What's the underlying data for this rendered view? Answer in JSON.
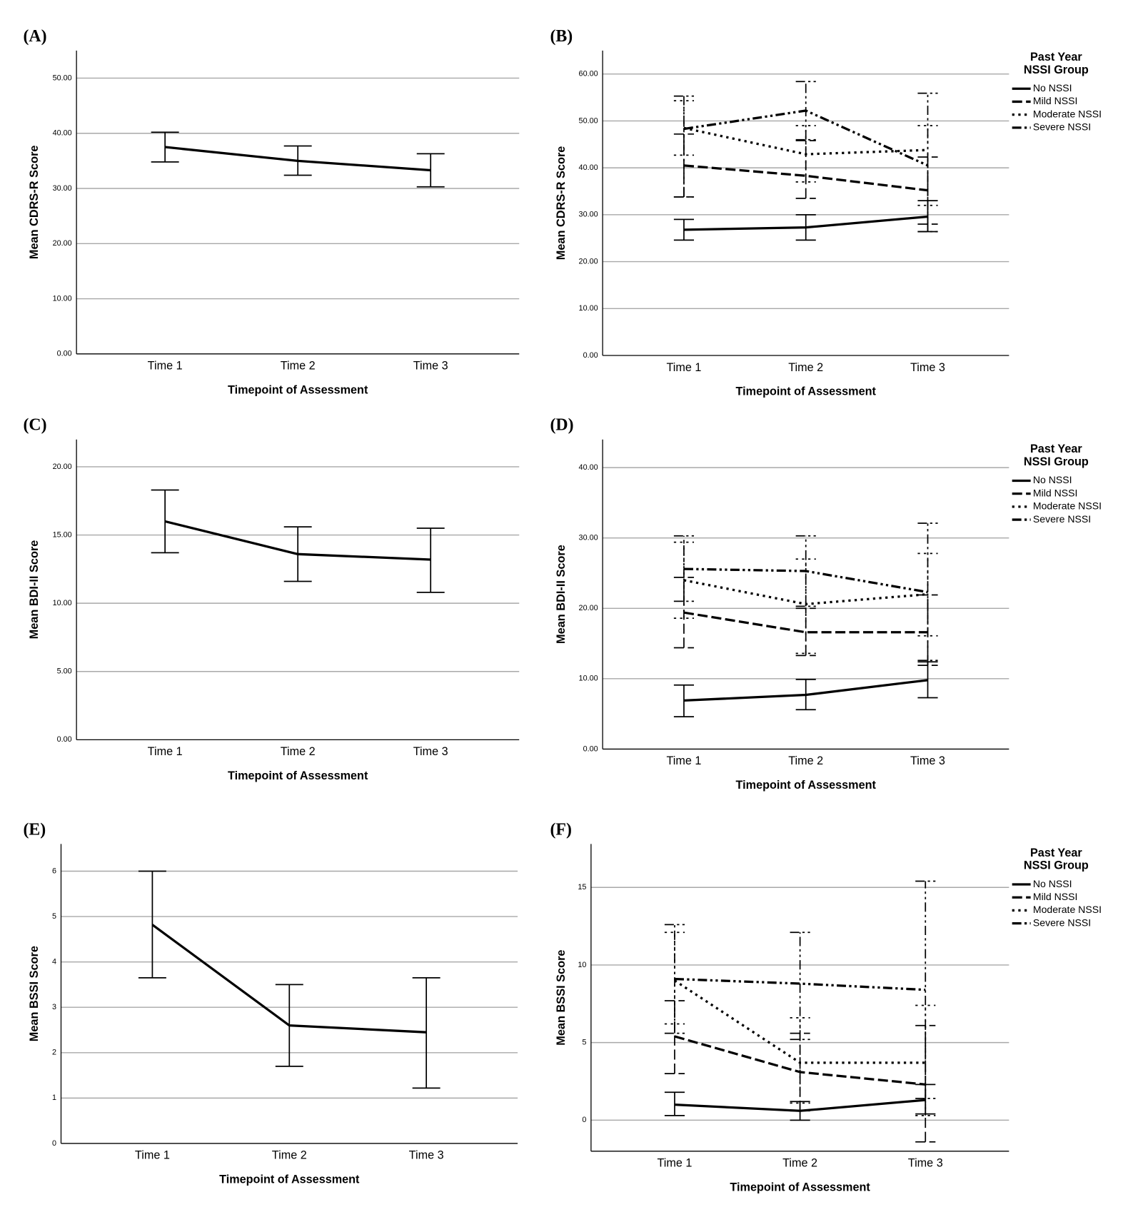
{
  "chart_data": [
    {
      "type": "line",
      "panel": "(A)",
      "ylabel": "Mean CDRS-R Score",
      "xlabel": "Timepoint of Assessment",
      "categories": [
        "Time 1",
        "Time 2",
        "Time 3"
      ],
      "ylim": [
        0,
        55
      ],
      "yticks": [
        {
          "value": 0,
          "label": "0.00"
        },
        {
          "value": 10,
          "label": "10.00"
        },
        {
          "value": 20,
          "label": "20.00"
        },
        {
          "value": 30,
          "label": "30.00"
        },
        {
          "value": 40,
          "label": "40.00"
        },
        {
          "value": 50,
          "label": "50.00"
        }
      ],
      "grid": true,
      "series": [
        {
          "color": "#000000",
          "values": [
            37.5,
            35.0,
            33.3
          ],
          "ci_low": [
            34.8,
            32.4,
            30.3
          ],
          "ci_high": [
            40.2,
            37.7,
            36.3
          ]
        }
      ]
    },
    {
      "type": "line",
      "panel": "(B)",
      "ylabel": "Mean CDRS-R Score",
      "xlabel": "Timepoint of Assessment",
      "categories": [
        "Time 1",
        "Time 2",
        "Time 3"
      ],
      "ylim": [
        0,
        65
      ],
      "yticks": [
        {
          "value": 0,
          "label": "0.00"
        },
        {
          "value": 10,
          "label": "10.00"
        },
        {
          "value": 20,
          "label": "20.00"
        },
        {
          "value": 30,
          "label": "30.00"
        },
        {
          "value": 40,
          "label": "40.00"
        },
        {
          "value": 50,
          "label": "50.00"
        },
        {
          "value": 60,
          "label": "60.00"
        }
      ],
      "grid": true,
      "legend_title": [
        "Past Year",
        "NSSI Group"
      ],
      "legend": "right",
      "series": [
        {
          "name": "No NSSI",
          "color": "#000000",
          "values": [
            26.8,
            27.3,
            29.6
          ],
          "ci_low": [
            24.6,
            24.6,
            26.4
          ],
          "ci_high": [
            29.0,
            30.0,
            33.0
          ]
        },
        {
          "name": "Mild NSSI",
          "color": "#000000",
          "values": [
            40.5,
            38.3,
            35.2
          ],
          "ci_low": [
            33.8,
            33.5,
            28.0
          ],
          "ci_high": [
            47.2,
            45.8,
            42.3
          ]
        },
        {
          "name": "Moderate NSSI",
          "color": "#000000",
          "values": [
            48.5,
            42.9,
            43.8
          ],
          "ci_low": [
            42.7,
            37.0,
            32.0
          ],
          "ci_high": [
            54.3,
            49.0,
            49.0
          ]
        },
        {
          "name": "Severe NSSI",
          "color": "#000000",
          "values": [
            48.3,
            52.2,
            40.5
          ],
          "ci_low": [
            33.8,
            46.0,
            26.4
          ],
          "ci_high": [
            55.3,
            58.4,
            55.9
          ]
        }
      ]
    },
    {
      "type": "line",
      "panel": "(C)",
      "ylabel": "Mean BDI-II Score",
      "xlabel": "Timepoint of Assessment",
      "categories": [
        "Time 1",
        "Time 2",
        "Time 3"
      ],
      "ylim": [
        0,
        22
      ],
      "yticks": [
        {
          "value": 0,
          "label": "0.00"
        },
        {
          "value": 5,
          "label": "5.00"
        },
        {
          "value": 10,
          "label": "10.00"
        },
        {
          "value": 15,
          "label": "15.00"
        },
        {
          "value": 20,
          "label": "20.00"
        }
      ],
      "grid": true,
      "series": [
        {
          "color": "#000000",
          "values": [
            16.0,
            13.6,
            13.2
          ],
          "ci_low": [
            13.7,
            11.6,
            10.8
          ],
          "ci_high": [
            18.3,
            15.6,
            15.5
          ]
        }
      ]
    },
    {
      "type": "line",
      "panel": "(D)",
      "ylabel": "Mean BDI-II Score",
      "xlabel": "Timepoint of Assessment",
      "categories": [
        "Time 1",
        "Time 2",
        "Time 3"
      ],
      "ylim": [
        0,
        44
      ],
      "yticks": [
        {
          "value": 0,
          "label": "0.00"
        },
        {
          "value": 10,
          "label": "10.00"
        },
        {
          "value": 20,
          "label": "20.00"
        },
        {
          "value": 30,
          "label": "30.00"
        },
        {
          "value": 40,
          "label": "40.00"
        }
      ],
      "grid": true,
      "legend_title": [
        "Past Year",
        "NSSI Group"
      ],
      "legend": "right",
      "series": [
        {
          "name": "No NSSI",
          "color": "#000000",
          "values": [
            6.9,
            7.7,
            9.8
          ],
          "ci_low": [
            4.6,
            5.6,
            7.3
          ],
          "ci_high": [
            9.1,
            9.9,
            12.4
          ]
        },
        {
          "name": "Mild NSSI",
          "color": "#000000",
          "values": [
            19.4,
            16.6,
            16.6
          ],
          "ci_low": [
            14.4,
            13.3,
            11.9
          ],
          "ci_high": [
            24.4,
            20.0,
            21.9
          ]
        },
        {
          "name": "Moderate NSSI",
          "color": "#000000",
          "values": [
            24.0,
            20.6,
            22.0
          ],
          "ci_low": [
            18.6,
            13.6,
            16.1
          ],
          "ci_high": [
            29.4,
            27.0,
            27.8
          ]
        },
        {
          "name": "Severe NSSI",
          "color": "#000000",
          "values": [
            25.6,
            25.3,
            22.3
          ],
          "ci_low": [
            21.0,
            20.3,
            12.6
          ],
          "ci_high": [
            30.3,
            30.3,
            32.1
          ]
        }
      ]
    },
    {
      "type": "line",
      "panel": "(E)",
      "ylabel": "Mean BSSI Score",
      "xlabel": "Timepoint of Assessment",
      "categories": [
        "Time 1",
        "Time 2",
        "Time 3"
      ],
      "ylim": [
        0,
        6.6
      ],
      "yticks": [
        0,
        1,
        2,
        3,
        4,
        5,
        6
      ],
      "grid": true,
      "series": [
        {
          "color": "#000000",
          "values": [
            4.82,
            2.6,
            2.45
          ],
          "ci_low": [
            3.65,
            1.7,
            1.22
          ],
          "ci_high": [
            6.0,
            3.5,
            3.65
          ]
        }
      ]
    },
    {
      "type": "line",
      "panel": "(F)",
      "ylabel": "Mean BSSI Score",
      "xlabel": "Timepoint of Assessment",
      "categories": [
        "Time 1",
        "Time 2",
        "Time 3"
      ],
      "ylim": [
        -2,
        17.8
      ],
      "yticks": [
        0,
        5,
        10,
        15
      ],
      "grid": true,
      "legend_title": [
        "Past Year",
        "NSSI Group"
      ],
      "legend": "right",
      "series": [
        {
          "name": "No NSSI",
          "color": "#000000",
          "values": [
            1.0,
            0.6,
            1.3
          ],
          "ci_low": [
            0.3,
            0.0,
            0.4
          ],
          "ci_high": [
            1.8,
            1.2,
            2.3
          ]
        },
        {
          "name": "Mild NSSI",
          "color": "#000000",
          "values": [
            5.4,
            3.1,
            2.3
          ],
          "ci_low": [
            3.0,
            0.6,
            -1.4
          ],
          "ci_high": [
            7.7,
            5.6,
            6.1
          ]
        },
        {
          "name": "Moderate NSSI",
          "color": "#000000",
          "values": [
            9.0,
            3.7,
            3.7
          ],
          "ci_low": [
            6.2,
            1.1,
            0.3
          ],
          "ci_high": [
            12.1,
            6.6,
            7.4
          ]
        },
        {
          "name": "Severe NSSI",
          "color": "#000000",
          "values": [
            9.1,
            8.8,
            8.4
          ],
          "ci_low": [
            5.6,
            5.2,
            1.4
          ],
          "ci_high": [
            12.6,
            12.1,
            15.4
          ]
        }
      ]
    }
  ]
}
